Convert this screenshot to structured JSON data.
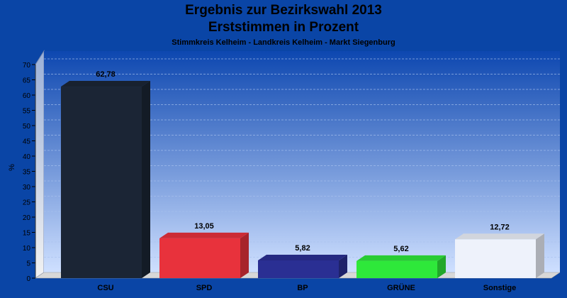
{
  "chart_data": {
    "type": "bar",
    "title": "Ergebnis zur Bezirkswahl 2013",
    "subtitle": "Erststimmen in Prozent",
    "caption": "Stimmkreis Kelheim - Landkreis Kelheim - Markt Siegenburg",
    "ylabel": "%",
    "ylim": [
      0,
      70
    ],
    "yticks": [
      0,
      5,
      10,
      15,
      20,
      25,
      30,
      35,
      40,
      45,
      50,
      55,
      60,
      65,
      70
    ],
    "grid": true,
    "categories": [
      "CSU",
      "SPD",
      "BP",
      "GRÜNE",
      "Sonstige"
    ],
    "values": [
      62.78,
      13.05,
      5.82,
      5.62,
      12.72
    ],
    "value_labels": [
      "62,78",
      "13,05",
      "5,82",
      "5,62",
      "12,72"
    ],
    "colors": [
      "#1b2535",
      "#e8323c",
      "#2a2f93",
      "#2ee83a",
      "#eef2fb"
    ]
  }
}
